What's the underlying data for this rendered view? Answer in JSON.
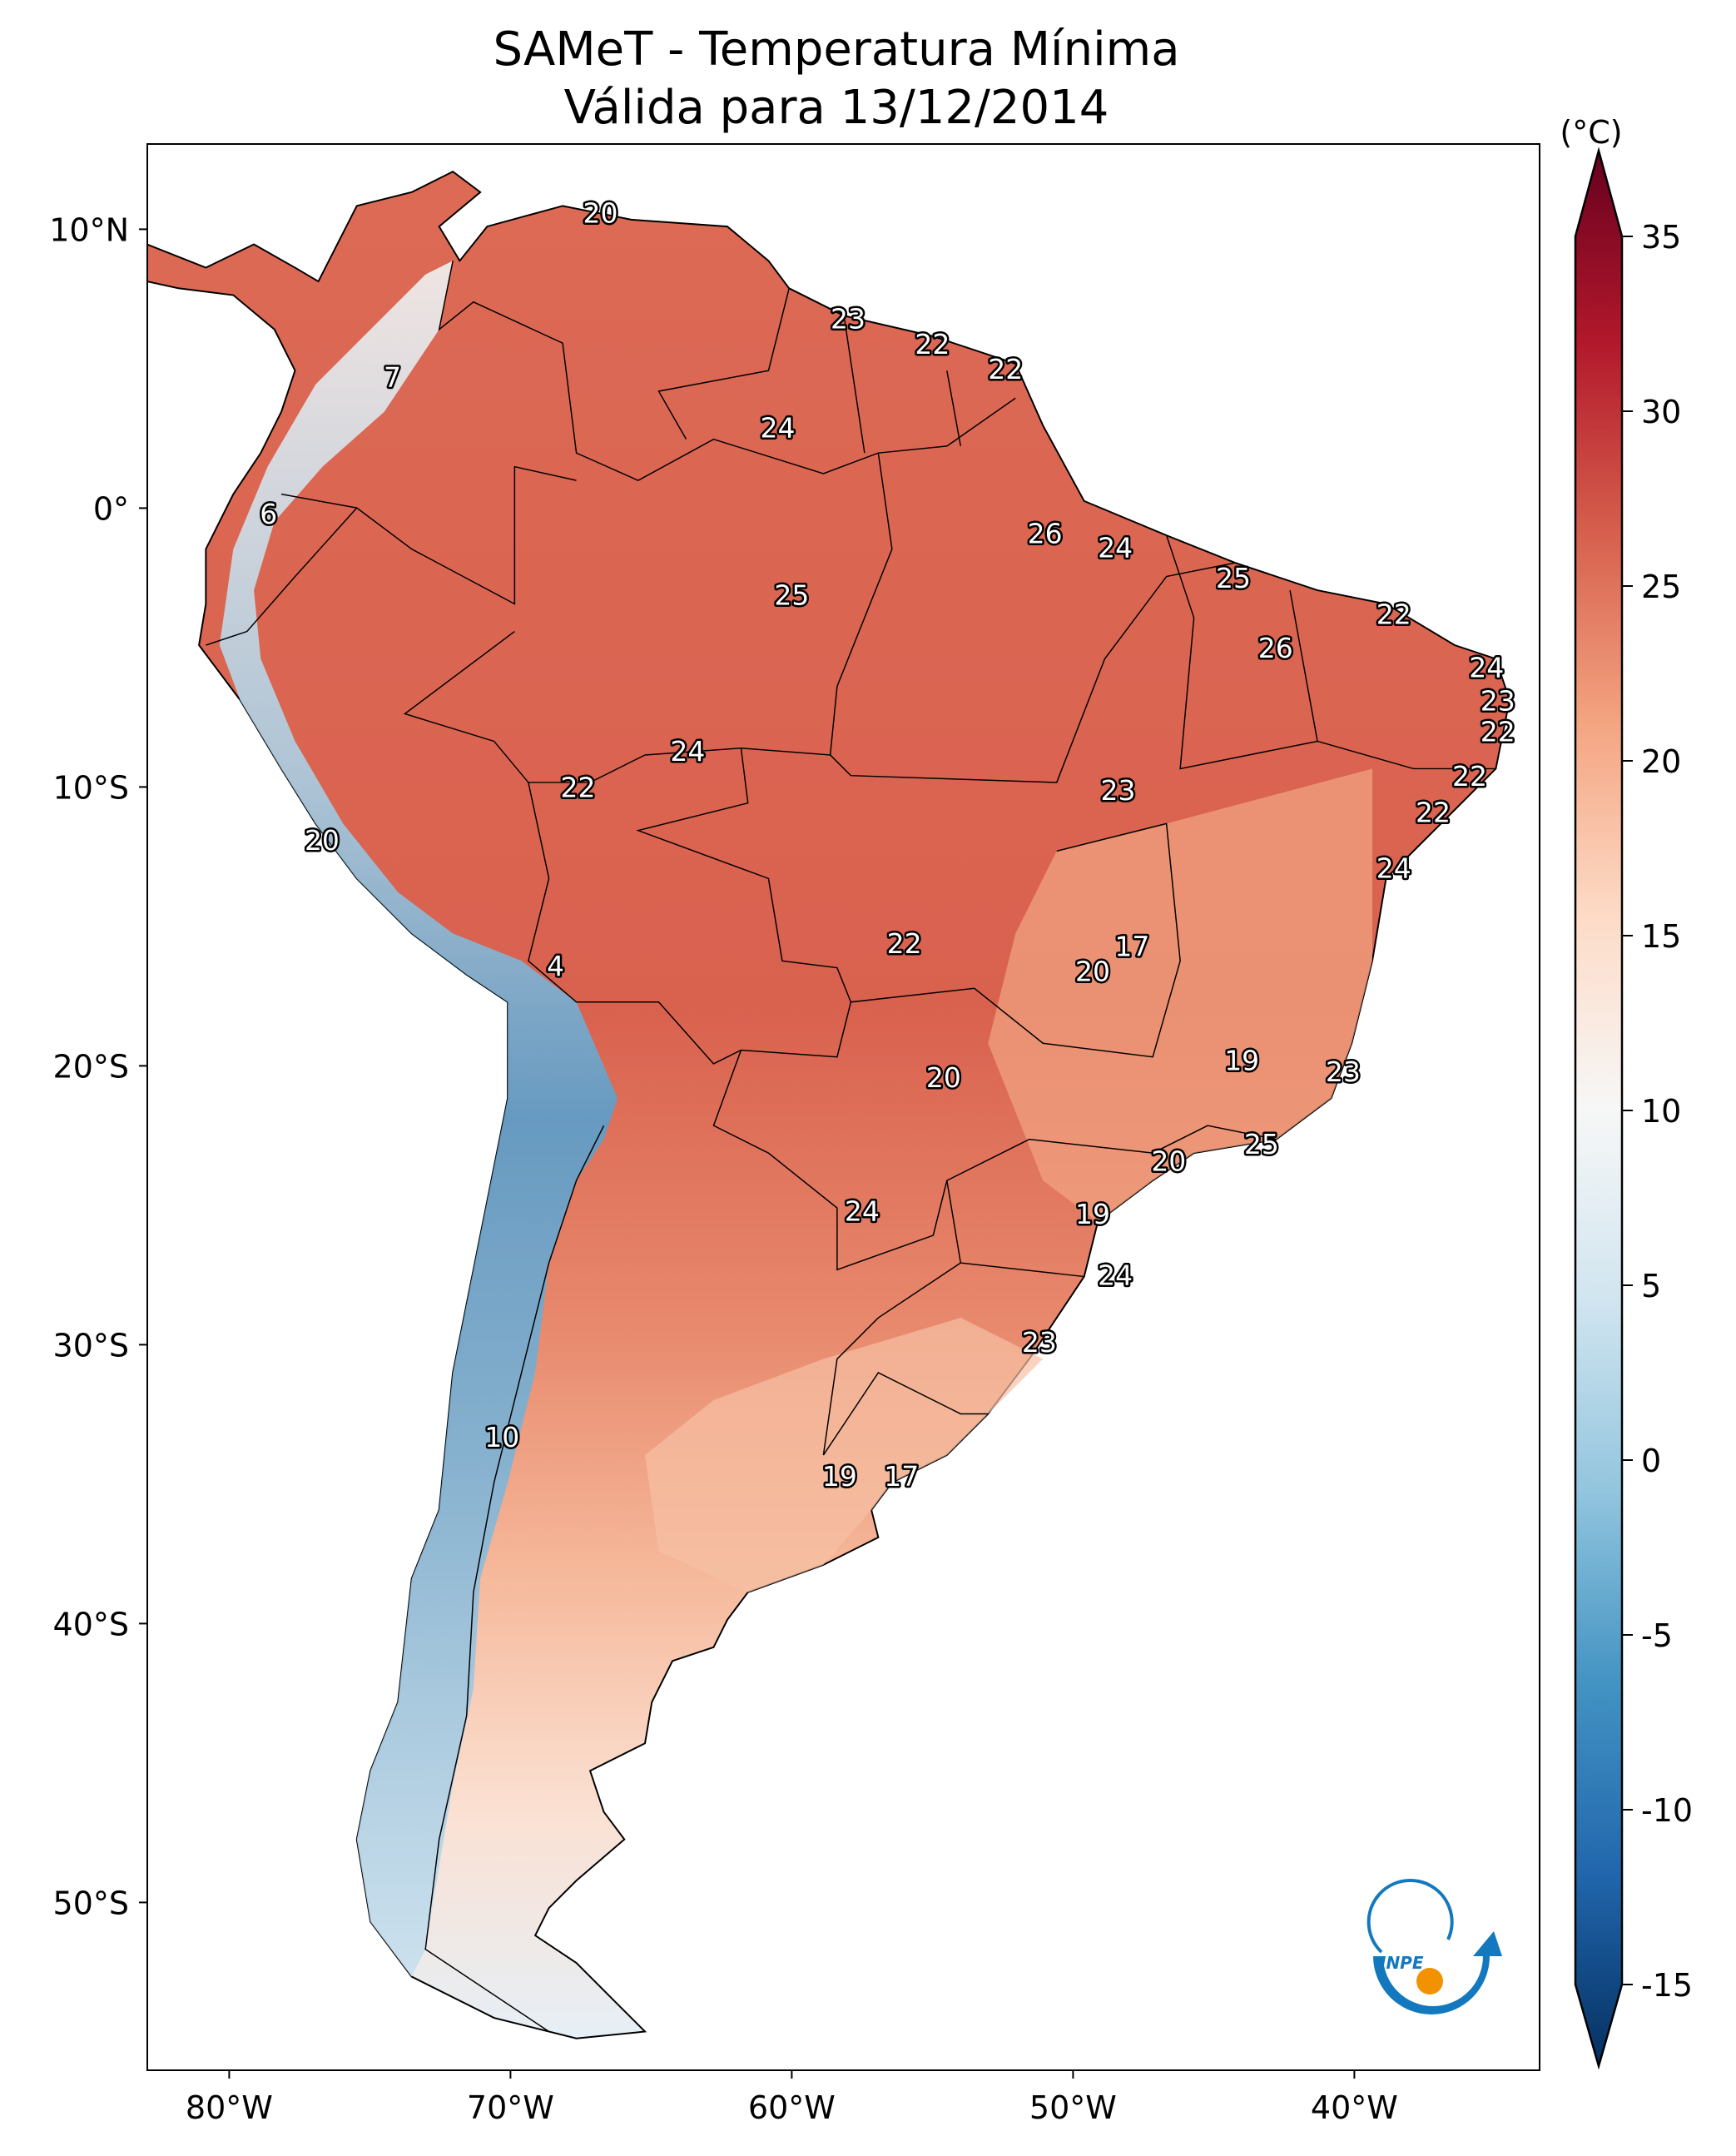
{
  "title": {
    "line1": "SAMeT - Temperatura Mínima",
    "line2": "Válida para 13/12/2014"
  },
  "colorbar": {
    "unit_label": "(°C)",
    "ticks": [
      "35",
      "30",
      "25",
      "20",
      "15",
      "10",
      "5",
      "0",
      "-5",
      "-10",
      "-15"
    ],
    "tick_values": [
      35,
      30,
      25,
      20,
      15,
      10,
      5,
      0,
      -5,
      -10,
      -15
    ],
    "range": [
      -15,
      35
    ],
    "extend": "both",
    "colormap": "RdBu_r",
    "colors": {
      "35": "#67001f",
      "30": "#b2182b",
      "25": "#d6604d",
      "20": "#f4a582",
      "15": "#fddbc7",
      "10": "#f7f7f7",
      "5": "#d1e5f0",
      "0": "#92c5de",
      "-5": "#4393c3",
      "-10": "#2166ac",
      "-15": "#053061"
    }
  },
  "axes": {
    "lon_ticks": [
      {
        "value": -80,
        "label": "80°W"
      },
      {
        "value": -70,
        "label": "70°W"
      },
      {
        "value": -60,
        "label": "60°W"
      },
      {
        "value": -50,
        "label": "50°W"
      },
      {
        "value": -40,
        "label": "40°W"
      }
    ],
    "lat_ticks": [
      {
        "value": 10,
        "label": "10°N"
      },
      {
        "value": 0,
        "label": "0°"
      },
      {
        "value": -10,
        "label": "10°S"
      },
      {
        "value": -20,
        "label": "20°S"
      },
      {
        "value": -30,
        "label": "30°S"
      },
      {
        "value": -40,
        "label": "40°S"
      },
      {
        "value": -50,
        "label": "50°S"
      }
    ],
    "lon_range": [
      -82.9,
      -33.4
    ],
    "lat_range": [
      -56.1,
      13.0
    ]
  },
  "chart_data": {
    "type": "heatmap",
    "title": "SAMeT - Temperatura Mínima Válida para 13/12/2014",
    "variable_unit": "°C",
    "value_labels": [
      {
        "lon": -66.8,
        "lat": 10.6,
        "value": "20"
      },
      {
        "lon": -58.0,
        "lat": 6.8,
        "value": "23"
      },
      {
        "lon": -55.0,
        "lat": 5.9,
        "value": "22"
      },
      {
        "lon": -52.4,
        "lat": 5.0,
        "value": "22"
      },
      {
        "lon": -74.2,
        "lat": 4.7,
        "value": "7"
      },
      {
        "lon": -60.5,
        "lat": 2.9,
        "value": "24"
      },
      {
        "lon": -78.6,
        "lat": -0.2,
        "value": "6"
      },
      {
        "lon": -51.0,
        "lat": -0.9,
        "value": "26"
      },
      {
        "lon": -48.5,
        "lat": -1.4,
        "value": "24"
      },
      {
        "lon": -44.3,
        "lat": -2.5,
        "value": "25"
      },
      {
        "lon": -60.0,
        "lat": -3.1,
        "value": "25"
      },
      {
        "lon": -38.6,
        "lat": -3.8,
        "value": "22"
      },
      {
        "lon": -42.8,
        "lat": -5.0,
        "value": "26"
      },
      {
        "lon": -35.3,
        "lat": -5.7,
        "value": "24"
      },
      {
        "lon": -34.9,
        "lat": -6.9,
        "value": "23"
      },
      {
        "lon": -34.9,
        "lat": -8.0,
        "value": "22"
      },
      {
        "lon": -63.7,
        "lat": -8.7,
        "value": "24"
      },
      {
        "lon": -67.6,
        "lat": -10.0,
        "value": "22"
      },
      {
        "lon": -48.4,
        "lat": -10.1,
        "value": "23"
      },
      {
        "lon": -35.9,
        "lat": -9.6,
        "value": "22"
      },
      {
        "lon": -37.2,
        "lat": -10.9,
        "value": "22"
      },
      {
        "lon": -76.7,
        "lat": -11.9,
        "value": "20"
      },
      {
        "lon": -38.6,
        "lat": -12.9,
        "value": "24"
      },
      {
        "lon": -47.9,
        "lat": -15.7,
        "value": "17"
      },
      {
        "lon": -56.0,
        "lat": -15.6,
        "value": "22"
      },
      {
        "lon": -68.4,
        "lat": -16.4,
        "value": "4"
      },
      {
        "lon": -49.3,
        "lat": -16.6,
        "value": "20"
      },
      {
        "lon": -44.0,
        "lat": -19.8,
        "value": "19"
      },
      {
        "lon": -40.4,
        "lat": -20.2,
        "value": "23"
      },
      {
        "lon": -54.6,
        "lat": -20.4,
        "value": "20"
      },
      {
        "lon": -43.3,
        "lat": -22.8,
        "value": "25"
      },
      {
        "lon": -46.6,
        "lat": -23.4,
        "value": "20"
      },
      {
        "lon": -57.5,
        "lat": -25.2,
        "value": "24"
      },
      {
        "lon": -49.3,
        "lat": -25.3,
        "value": "19"
      },
      {
        "lon": -48.5,
        "lat": -27.5,
        "value": "24"
      },
      {
        "lon": -51.2,
        "lat": -29.9,
        "value": "23"
      },
      {
        "lon": -70.3,
        "lat": -33.3,
        "value": "10"
      },
      {
        "lon": -58.3,
        "lat": -34.7,
        "value": "19"
      },
      {
        "lon": -56.1,
        "lat": -34.7,
        "value": "17"
      }
    ]
  },
  "logo": {
    "text": "INPE",
    "colors": {
      "arc": "#1478be",
      "dot": "#f39200"
    }
  }
}
